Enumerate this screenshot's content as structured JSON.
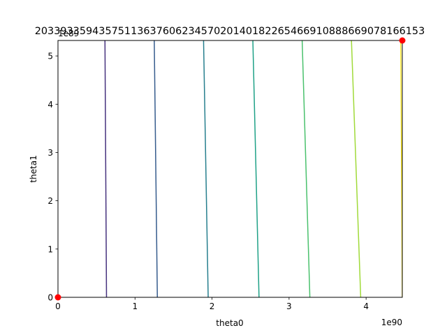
{
  "chart_data": {
    "type": "contour",
    "title": "2033933594357511363760623457020140182265466910888669078166153",
    "xlabel": "theta0",
    "ylabel": "theta1",
    "x_offset_label": "1e90",
    "y_offset_label": "1e89",
    "xlim": [
      0,
      4.47
    ],
    "ylim": [
      0,
      5.32
    ],
    "x_ticks": [
      "0",
      "1",
      "2",
      "3",
      "4"
    ],
    "y_ticks": [
      "0",
      "1",
      "2",
      "3",
      "4",
      "5"
    ],
    "grid": false,
    "legend": "none",
    "contour_levels": [
      {
        "color": "#46327e",
        "x_bottom": 0.63,
        "x_top": 0.61
      },
      {
        "color": "#365c8d",
        "x_bottom": 1.29,
        "x_top": 1.25
      },
      {
        "color": "#277f8e",
        "x_bottom": 1.95,
        "x_top": 1.89
      },
      {
        "color": "#1fa187",
        "x_bottom": 2.61,
        "x_top": 2.53
      },
      {
        "color": "#4ac16d",
        "x_bottom": 3.27,
        "x_top": 3.17
      },
      {
        "color": "#a0da39",
        "x_bottom": 3.93,
        "x_top": 3.81
      },
      {
        "color": "#fde725",
        "x_bottom": 4.47,
        "x_top": 4.45
      }
    ],
    "points": [
      {
        "x": 0.0,
        "y": 0.0,
        "color": "#ff0000"
      },
      {
        "x": 4.47,
        "y": 5.32,
        "color": "#ff0000"
      }
    ]
  }
}
